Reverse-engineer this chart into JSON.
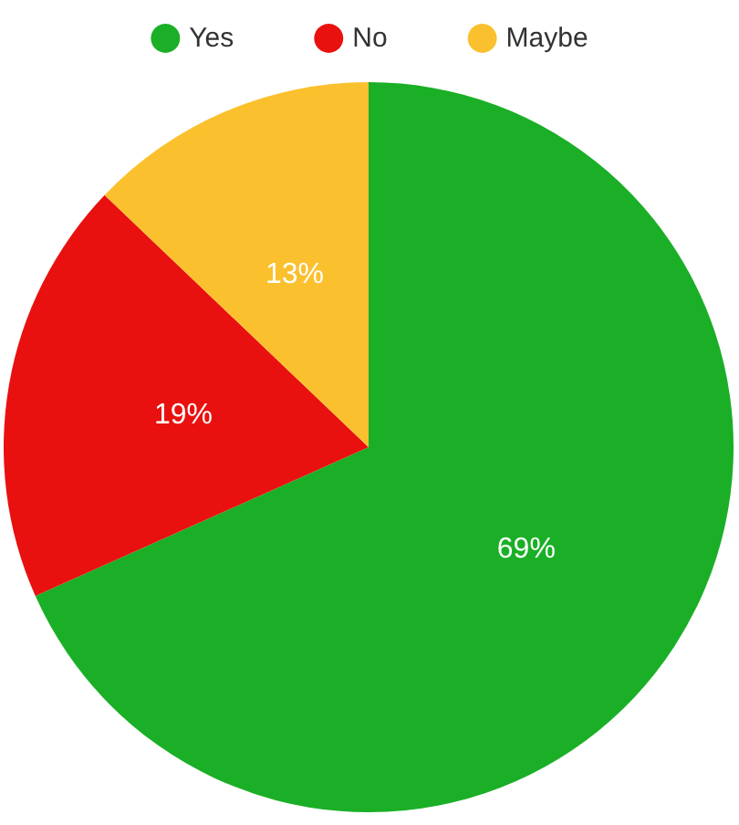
{
  "chart_data": {
    "type": "pie",
    "categories": [
      "Yes",
      "No",
      "Maybe"
    ],
    "values": [
      69,
      19,
      13
    ],
    "value_labels": [
      "69%",
      "19%",
      "13%"
    ],
    "colors": [
      "#1aaf26",
      "#e8110f",
      "#fbc02d"
    ],
    "legend": "top"
  }
}
